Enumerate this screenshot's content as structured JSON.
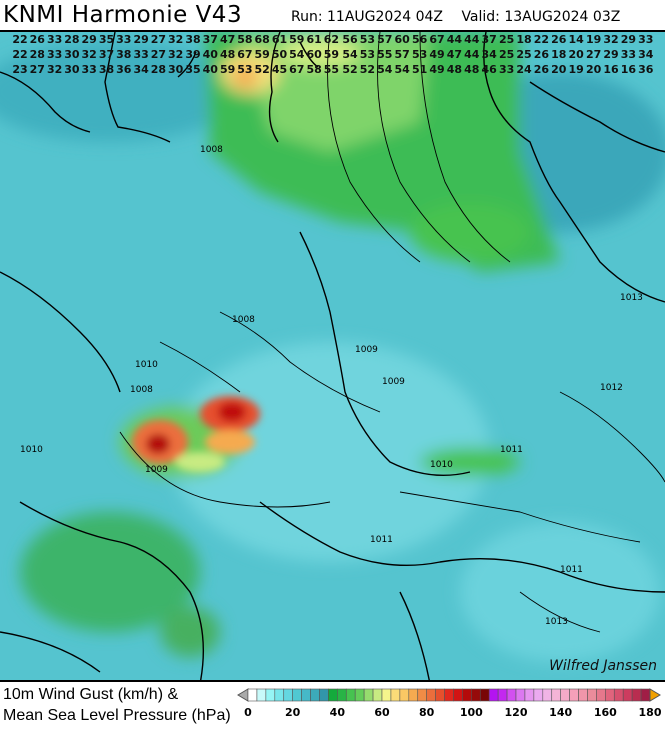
{
  "header": {
    "title": "KNMI Harmonie V43",
    "run": "Run: 11AUG2024 04Z",
    "valid": "Valid: 13AUG2024 03Z"
  },
  "legend": {
    "line1": "10m Wind Gust (km/h) &",
    "line2": "Mean Sea Level Pressure (hPa)",
    "ticks": [
      "0",
      "20",
      "40",
      "60",
      "80",
      "100",
      "120",
      "140",
      "160",
      "180"
    ],
    "range": [
      0,
      180
    ],
    "step": 4,
    "colors": [
      "#ffffff",
      "#c8fafa",
      "#96f5f5",
      "#78e6eb",
      "#64d7e1",
      "#50c8d2",
      "#46b9c8",
      "#3caab9",
      "#3296aa",
      "#14aa3c",
      "#28b446",
      "#46c350",
      "#64cd5a",
      "#96dc6e",
      "#c8eb82",
      "#f5f58c",
      "#fadc78",
      "#fac864",
      "#f5aa50",
      "#f08c46",
      "#eb6e3c",
      "#e6502d",
      "#e1281e",
      "#d21414",
      "#b40a0a",
      "#960a0a",
      "#780505",
      "#b414f0",
      "#c328f0",
      "#d250f0",
      "#dc78f0",
      "#e696f0",
      "#ebaaf0",
      "#f0b4e6",
      "#f5b4d7",
      "#f5aac8",
      "#f5a0b9",
      "#f096aa",
      "#eb8c9b",
      "#e6788c",
      "#e1647d",
      "#d7506e",
      "#cd3c5f",
      "#b92d50",
      "#a01e46"
    ]
  },
  "pressure_labels": [
    "1008",
    "1008",
    "1008",
    "1009",
    "1009",
    "1009",
    "1010",
    "1010",
    "1010",
    "1011",
    "1011",
    "1011",
    "1012",
    "1013",
    "1013"
  ],
  "credit": "Wilfred Janssen",
  "grid_rows": [
    {
      "left": [
        "22",
        "26",
        "33",
        "28",
        "29",
        "35",
        "33",
        "29",
        "27",
        "32",
        "38",
        "37",
        "47",
        "58",
        "68",
        "61",
        "59",
        "61",
        "62"
      ],
      "right": [
        "56",
        "53",
        "57",
        "60",
        "56",
        "67",
        "44",
        "44",
        "37",
        "25",
        "18",
        "22",
        "26",
        "14",
        "19",
        "32",
        "29",
        "33"
      ]
    },
    {
      "left": [
        "22",
        "28",
        "33",
        "30",
        "32",
        "37",
        "38",
        "33",
        "27",
        "32",
        "39",
        "40",
        "48",
        "67",
        "59",
        "50",
        "54",
        "60",
        "59"
      ],
      "right": [
        "54",
        "53",
        "55",
        "57",
        "53",
        "49",
        "47",
        "44",
        "34",
        "25",
        "25",
        "26",
        "18",
        "20",
        "27",
        "29",
        "33",
        "34"
      ]
    },
    {
      "left": [
        "23",
        "27",
        "32",
        "30",
        "33",
        "38",
        "36",
        "34",
        "28",
        "30",
        "35",
        "40",
        "59",
        "53",
        "52",
        "45",
        "67",
        "58",
        "55"
      ],
      "right": [
        "52",
        "52",
        "54",
        "54",
        "51",
        "49",
        "48",
        "48",
        "46",
        "33",
        "24",
        "26",
        "20",
        "19",
        "20",
        "16",
        "16",
        "36"
      ]
    }
  ]
}
